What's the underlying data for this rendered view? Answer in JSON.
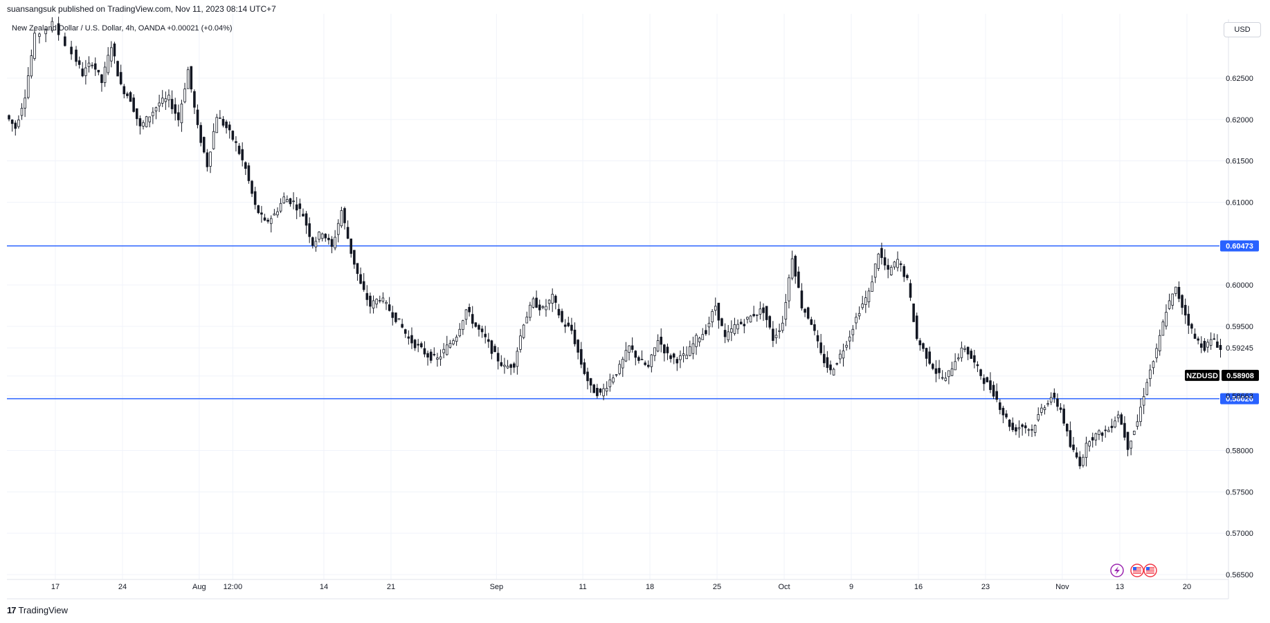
{
  "header": {
    "publish_line": "suansangsuk published on TradingView.com, Nov 11, 2023 08:14 UTC+7",
    "symbol_line": "New Zealand Dollar / U.S. Dollar, 4h, OANDA  +0.00021 (+0.04%)",
    "currency": "USD"
  },
  "footer": {
    "brand": "TradingView",
    "logo_glyph": "17"
  },
  "colors": {
    "candle_body_up": "#ffffff",
    "candle_body_down": "#131722",
    "wick": "#131722",
    "hline": "#2962ff",
    "grid": "#f0f3fa",
    "axis_border": "#e0e3eb"
  },
  "chart_data": {
    "type": "candlestick",
    "symbol": "NZDUSD",
    "interval": "4h",
    "ylim": [
      0.5645,
      0.6315
    ],
    "y_ticks": [
      0.625,
      0.62,
      0.615,
      0.61,
      0.6,
      0.595,
      0.5924,
      0.589,
      0.5866,
      0.58,
      0.575,
      0.57,
      0.565
    ],
    "y_tick_labels": [
      "0.62500",
      "0.62000",
      "0.61500",
      "0.61000",
      "0.60000",
      "0.59500",
      "0.59245",
      "0.59000",
      "0.58663",
      "0.58000",
      "0.57500",
      "0.57000",
      "0.56500"
    ],
    "x_tick_labels": [
      "17",
      "24",
      "Aug",
      "12:00",
      "14",
      "21",
      "Sep",
      "11",
      "18",
      "25",
      "Oct",
      "9",
      "16",
      "23",
      "Nov",
      "13",
      "20"
    ],
    "x_tick_days": [
      0,
      7,
      15,
      18.5,
      28,
      35,
      46,
      55,
      62,
      69,
      76,
      83,
      90,
      97,
      105,
      111,
      118
    ],
    "x_range_days": [
      -5.25,
      124.5
    ],
    "grid": true,
    "horizontal_lines": [
      {
        "price": 0.60473,
        "label": "0.60473"
      },
      {
        "price": 0.58626,
        "label": "0.58626"
      }
    ],
    "last_price": {
      "name": "NZDUSD",
      "value": 0.58908,
      "label": "0.58908"
    },
    "price_path": [
      {
        "day": -5,
        "price": 0.6205
      },
      {
        "day": -4,
        "price": 0.619
      },
      {
        "day": -3,
        "price": 0.623
      },
      {
        "day": -2,
        "price": 0.63
      },
      {
        "day": 0,
        "price": 0.6315
      },
      {
        "day": 2,
        "price": 0.628
      },
      {
        "day": 3,
        "price": 0.6255
      },
      {
        "day": 4,
        "price": 0.627
      },
      {
        "day": 5,
        "price": 0.6245
      },
      {
        "day": 6,
        "price": 0.629
      },
      {
        "day": 7,
        "price": 0.624
      },
      {
        "day": 8,
        "price": 0.6225
      },
      {
        "day": 9,
        "price": 0.619
      },
      {
        "day": 10,
        "price": 0.6205
      },
      {
        "day": 11,
        "price": 0.622
      },
      {
        "day": 12,
        "price": 0.6225
      },
      {
        "day": 13,
        "price": 0.62
      },
      {
        "day": 14,
        "price": 0.626
      },
      {
        "day": 15,
        "price": 0.619
      },
      {
        "day": 16,
        "price": 0.6145
      },
      {
        "day": 17,
        "price": 0.6205
      },
      {
        "day": 18,
        "price": 0.619
      },
      {
        "day": 19,
        "price": 0.617
      },
      {
        "day": 20,
        "price": 0.614
      },
      {
        "day": 21,
        "price": 0.6095
      },
      {
        "day": 22,
        "price": 0.6075
      },
      {
        "day": 23,
        "price": 0.6085
      },
      {
        "day": 24,
        "price": 0.6105
      },
      {
        "day": 25,
        "price": 0.61
      },
      {
        "day": 26,
        "price": 0.6085
      },
      {
        "day": 27,
        "price": 0.605
      },
      {
        "day": 28,
        "price": 0.6065
      },
      {
        "day": 29,
        "price": 0.6045
      },
      {
        "day": 30,
        "price": 0.609
      },
      {
        "day": 31,
        "price": 0.604
      },
      {
        "day": 32,
        "price": 0.6
      },
      {
        "day": 33,
        "price": 0.5975
      },
      {
        "day": 34,
        "price": 0.5985
      },
      {
        "day": 35,
        "price": 0.597
      },
      {
        "day": 36,
        "price": 0.5955
      },
      {
        "day": 37,
        "price": 0.5935
      },
      {
        "day": 38,
        "price": 0.5925
      },
      {
        "day": 39,
        "price": 0.5915
      },
      {
        "day": 40,
        "price": 0.591
      },
      {
        "day": 41,
        "price": 0.5925
      },
      {
        "day": 42,
        "price": 0.594
      },
      {
        "day": 43,
        "price": 0.597
      },
      {
        "day": 44,
        "price": 0.595
      },
      {
        "day": 45,
        "price": 0.5935
      },
      {
        "day": 46,
        "price": 0.5915
      },
      {
        "day": 47,
        "price": 0.59
      },
      {
        "day": 48,
        "price": 0.5905
      },
      {
        "day": 49,
        "price": 0.5955
      },
      {
        "day": 50,
        "price": 0.598
      },
      {
        "day": 51,
        "price": 0.597
      },
      {
        "day": 52,
        "price": 0.5985
      },
      {
        "day": 53,
        "price": 0.5955
      },
      {
        "day": 54,
        "price": 0.5945
      },
      {
        "day": 55,
        "price": 0.5905
      },
      {
        "day": 56,
        "price": 0.5875
      },
      {
        "day": 57,
        "price": 0.5868
      },
      {
        "day": 58,
        "price": 0.5885
      },
      {
        "day": 59,
        "price": 0.59
      },
      {
        "day": 60,
        "price": 0.5925
      },
      {
        "day": 61,
        "price": 0.591
      },
      {
        "day": 62,
        "price": 0.59
      },
      {
        "day": 63,
        "price": 0.5935
      },
      {
        "day": 64,
        "price": 0.5915
      },
      {
        "day": 65,
        "price": 0.591
      },
      {
        "day": 66,
        "price": 0.5915
      },
      {
        "day": 67,
        "price": 0.5935
      },
      {
        "day": 68,
        "price": 0.5945
      },
      {
        "day": 69,
        "price": 0.5975
      },
      {
        "day": 70,
        "price": 0.5935
      },
      {
        "day": 71,
        "price": 0.595
      },
      {
        "day": 72,
        "price": 0.5955
      },
      {
        "day": 73,
        "price": 0.5965
      },
      {
        "day": 74,
        "price": 0.597
      },
      {
        "day": 75,
        "price": 0.5935
      },
      {
        "day": 76,
        "price": 0.5955
      },
      {
        "day": 77,
        "price": 0.6035
      },
      {
        "day": 78,
        "price": 0.5975
      },
      {
        "day": 79,
        "price": 0.5955
      },
      {
        "day": 80,
        "price": 0.5915
      },
      {
        "day": 81,
        "price": 0.5895
      },
      {
        "day": 82,
        "price": 0.5915
      },
      {
        "day": 83,
        "price": 0.594
      },
      {
        "day": 84,
        "price": 0.597
      },
      {
        "day": 85,
        "price": 0.599
      },
      {
        "day": 86,
        "price": 0.604
      },
      {
        "day": 87,
        "price": 0.6015
      },
      {
        "day": 88,
        "price": 0.603
      },
      {
        "day": 89,
        "price": 0.6005
      },
      {
        "day": 90,
        "price": 0.5935
      },
      {
        "day": 91,
        "price": 0.5915
      },
      {
        "day": 92,
        "price": 0.5895
      },
      {
        "day": 93,
        "price": 0.5885
      },
      {
        "day": 94,
        "price": 0.591
      },
      {
        "day": 95,
        "price": 0.5925
      },
      {
        "day": 96,
        "price": 0.5905
      },
      {
        "day": 97,
        "price": 0.5885
      },
      {
        "day": 98,
        "price": 0.587
      },
      {
        "day": 99,
        "price": 0.5845
      },
      {
        "day": 100,
        "price": 0.5825
      },
      {
        "day": 101,
        "price": 0.583
      },
      {
        "day": 102,
        "price": 0.5825
      },
      {
        "day": 103,
        "price": 0.585
      },
      {
        "day": 104,
        "price": 0.5865
      },
      {
        "day": 105,
        "price": 0.585
      },
      {
        "day": 106,
        "price": 0.5805
      },
      {
        "day": 107,
        "price": 0.5785
      },
      {
        "day": 108,
        "price": 0.5815
      },
      {
        "day": 109,
        "price": 0.582
      },
      {
        "day": 110,
        "price": 0.5825
      },
      {
        "day": 111,
        "price": 0.5845
      },
      {
        "day": 112,
        "price": 0.5805
      },
      {
        "day": 113,
        "price": 0.5835
      },
      {
        "day": 114,
        "price": 0.5885
      },
      {
        "day": 115,
        "price": 0.592
      },
      {
        "day": 116,
        "price": 0.597
      },
      {
        "day": 117,
        "price": 0.5995
      },
      {
        "day": 118,
        "price": 0.5965
      },
      {
        "day": 119,
        "price": 0.5935
      },
      {
        "day": 120,
        "price": 0.5925
      },
      {
        "day": 121,
        "price": 0.5935
      },
      {
        "day": 122,
        "price": 0.5915
      },
      {
        "day": 123,
        "price": 0.594
      },
      {
        "day": 124,
        "price": 0.5895
      },
      {
        "day": 125,
        "price": 0.5891
      }
    ],
    "candles_per_day": 3
  }
}
